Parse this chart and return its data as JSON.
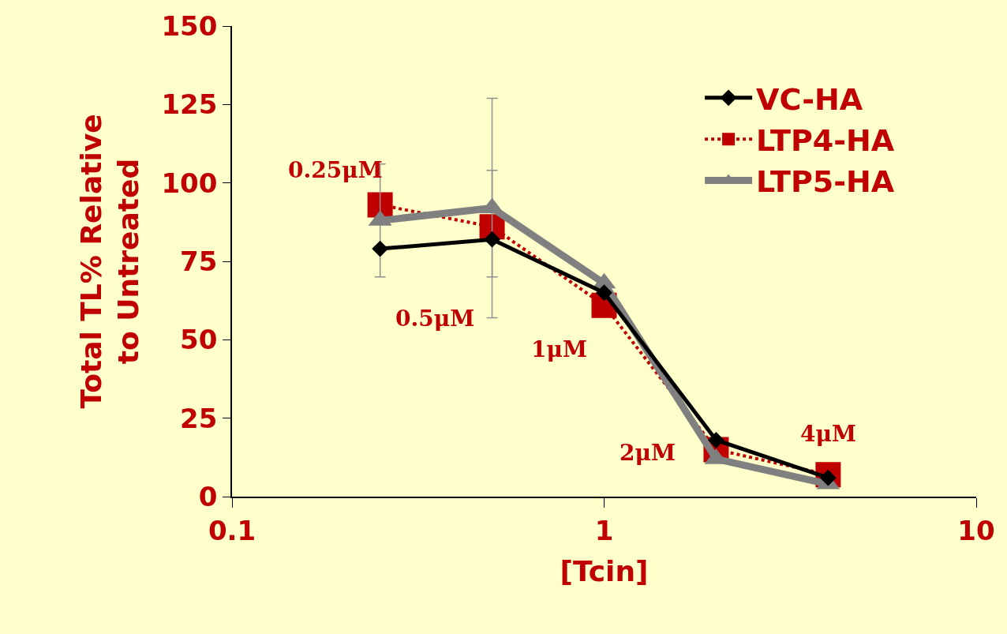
{
  "chart_data": {
    "type": "line",
    "xlabel": "[Tcin]",
    "ylabel": "Total TL% Relative\nto Untreated",
    "x": [
      0.25,
      0.5,
      1,
      2,
      4
    ],
    "log": "x",
    "xlim": [
      0.1,
      10
    ],
    "xticks": [
      0.1,
      1,
      10
    ],
    "ylim": [
      0,
      150
    ],
    "yticks": [
      0,
      25,
      50,
      75,
      100,
      125,
      150
    ],
    "grid": false,
    "legend": "top right",
    "series": [
      {
        "name": "VC-HA",
        "color": "#000000",
        "marker": "diamond",
        "line_style": "solid",
        "values": [
          79,
          82,
          65,
          18,
          6
        ]
      },
      {
        "name": "LTP4-HA",
        "color": "#c00000",
        "marker": "square",
        "line_style": "dotted",
        "values": [
          93,
          86,
          61,
          15,
          7
        ],
        "errors": [
          null,
          [
            70,
            104
          ],
          null,
          null,
          null
        ]
      },
      {
        "name": "LTP5-HA",
        "color": "#808080",
        "marker": "triangle",
        "line_style": "solid",
        "values": [
          88,
          92,
          68,
          12,
          4
        ],
        "errors": [
          18,
          35,
          null,
          null,
          null
        ]
      }
    ],
    "annotations": [
      "0.25μM",
      "0.5μM",
      "1μM",
      "2μM",
      "4μM"
    ]
  }
}
